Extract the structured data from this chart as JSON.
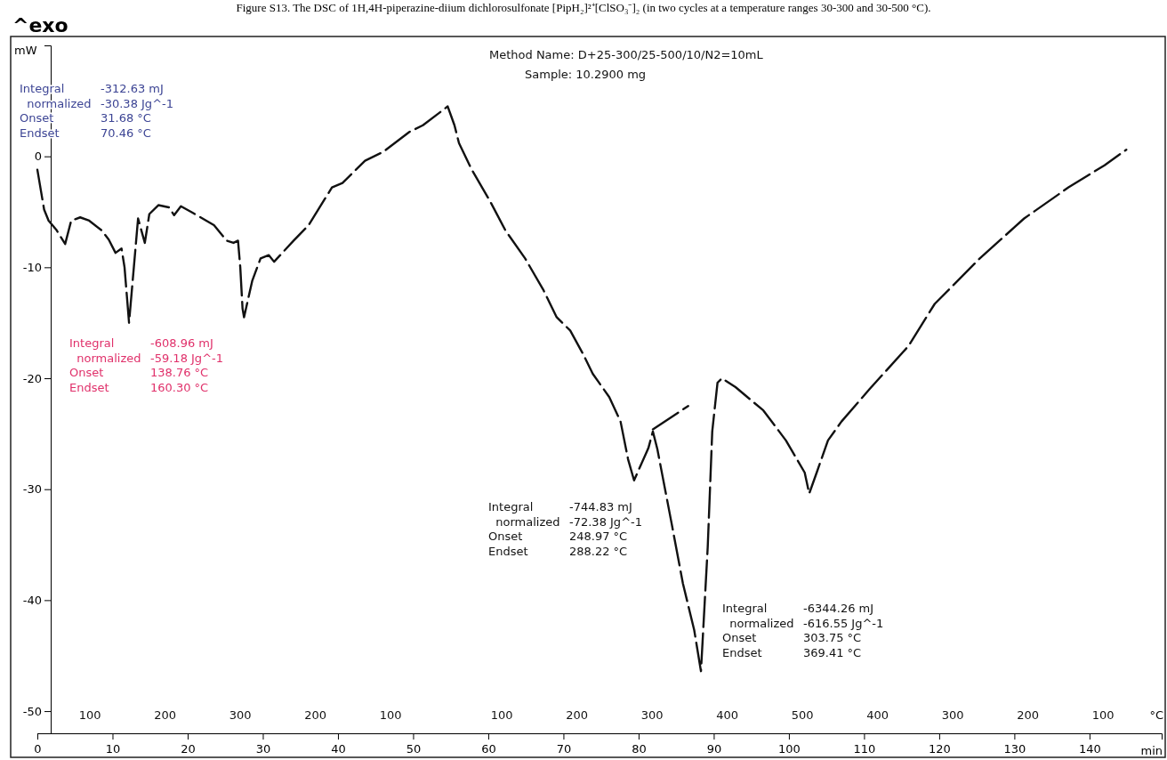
{
  "chart_data": {
    "type": "line",
    "title": "Figure S13. The DSC of 1H,4H-piperazine-diium dichlorosulfonate [PipH₂]²⁺[ClSO₃⁻]₂ (in two cycles at a temperature ranges 30-300 and 30-500 °C).",
    "xlabel": "min",
    "ylabel": "mW",
    "xlim": [
      0,
      149.6
    ],
    "ylim": [
      -52,
      10
    ],
    "xticks": [
      0,
      10,
      20,
      30,
      40,
      50,
      60,
      70,
      80,
      90,
      100,
      110,
      120,
      130,
      140
    ],
    "yticks": [
      0,
      -10,
      -20,
      -30,
      -40,
      -50
    ],
    "grid": false,
    "line_style": "dashed",
    "marker": "none",
    "series": [
      {
        "color": "#111111",
        "x": [
          0,
          0.9,
          1.5,
          2.5,
          3.7,
          4.5,
          5.7,
          6.9,
          8.6,
          9.5,
          10.4,
          11.2,
          11.6,
          12.2,
          13.4,
          14.3,
          14.9,
          16.1,
          17.5,
          18.2,
          19.1,
          20.7,
          23.5,
          25.2,
          26.1,
          26.7,
          27.0,
          27.3,
          27.5,
          28.6,
          29.7,
          30.8,
          31.5,
          34.1,
          36.1,
          39.2,
          40.6,
          43.6,
          46.0,
          49.5,
          51.3,
          54.6,
          55.5,
          56.1,
          57.8,
          60.2,
          62.3,
          64.9,
          67.3,
          69.1,
          70.9,
          72.6,
          73.9,
          76.1,
          77.6,
          78.6,
          79.4,
          81.3,
          81.9,
          82.5,
          84.4,
          85.9,
          87.4,
          88.3,
          89.2,
          89.8,
          90.5,
          91.1,
          92.9,
          96.6,
          99.6,
          102.1,
          102.7,
          103.7,
          105.2,
          107.0,
          110.7,
          115.9,
          119.4,
          125.4,
          131.3,
          137.2,
          142.0,
          144.9
        ],
        "values": [
          -1.2,
          -4.8,
          -5.8,
          -6.6,
          -7.9,
          -5.8,
          -5.5,
          -5.8,
          -6.7,
          -7.5,
          -8.7,
          -8.3,
          -10.0,
          -15.0,
          -5.6,
          -7.8,
          -5.2,
          -4.4,
          -4.6,
          -5.3,
          -4.5,
          -5.1,
          -6.2,
          -7.6,
          -7.8,
          -7.6,
          -10.0,
          -13.7,
          -14.5,
          -11.2,
          -9.2,
          -8.9,
          -9.5,
          -7.6,
          -6.2,
          -2.8,
          -2.4,
          -0.4,
          0.4,
          2.2,
          2.8,
          4.5,
          2.8,
          1.2,
          -1.2,
          -4.0,
          -6.7,
          -9.2,
          -12.0,
          -14.5,
          -15.7,
          -17.8,
          -19.6,
          -21.7,
          -23.9,
          -27.3,
          -29.2,
          -26.3,
          -24.8,
          -26.4,
          -33.1,
          -38.5,
          -42.7,
          -46.4,
          -35.2,
          -24.8,
          -20.4,
          -20.0,
          -20.8,
          -22.9,
          -25.6,
          -28.5,
          -30.4,
          -28.5,
          -25.6,
          -23.9,
          -21.0,
          -17.1,
          -13.3,
          -9.2,
          -5.6,
          -2.8,
          -0.8,
          0.6
        ]
      },
      {
        "color": "#111111",
        "x": [
          81.9,
          86.6
        ],
        "values": [
          -24.6,
          -22.5
        ]
      }
    ],
    "annotations": [
      "^exo",
      "Method Name: D+25-300/25-500/10/N2=10mL",
      "Sample:  10.2900 mg",
      "Integral\t-312.63 mJ",
      "  normalized\t-30.38 Jg^-1",
      "Onset\t31.68 °C",
      "Endset\t70.46 °C",
      "Integral\t-608.96 mJ",
      "  normalized\t-59.18 Jg^-1",
      "Onset\t138.76 °C",
      "Endset\t160.30 °C",
      "Integral\t-744.83 mJ",
      "  normalized\t-72.38 Jg^-1",
      "Onset\t248.97 °C",
      "Endset\t288.22 °C",
      "Integral\t-6344.26 mJ",
      "  normalized\t-616.55 Jg^-1",
      "Onset\t303.75 °C",
      "Endset\t369.41 °C",
      "°C",
      "100",
      "200",
      "300",
      "200",
      "100",
      "100",
      "200",
      "300",
      "400",
      "500",
      "400",
      "300",
      "200",
      "100"
    ]
  }
}
